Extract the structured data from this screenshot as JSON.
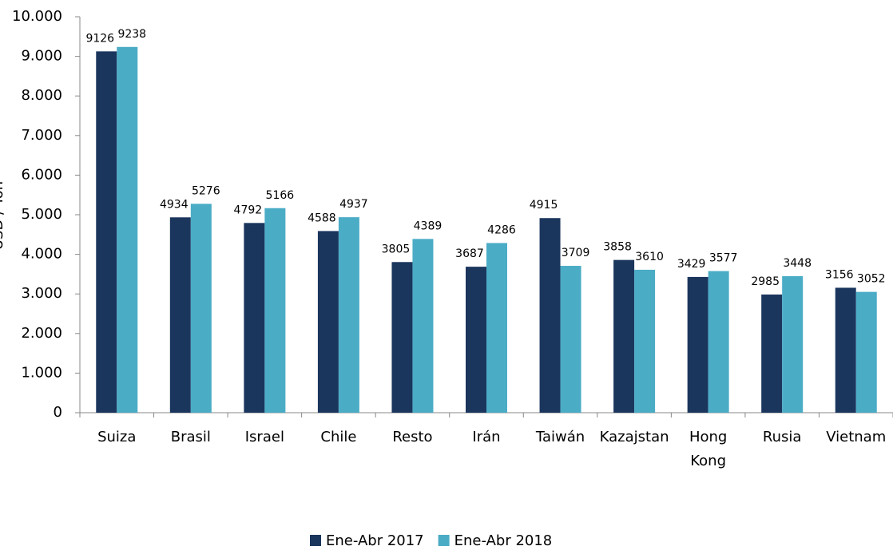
{
  "chart_data": {
    "type": "bar",
    "ylabel": "USD / Ton",
    "categories": [
      "Suiza",
      "Brasil",
      "Israel",
      "Chile",
      "Resto",
      "Irán",
      "Taiwán",
      "Kazajstan",
      "Hong Kong",
      "Rusia",
      "Vietnam"
    ],
    "series": [
      {
        "name": "Ene-Abr 2017",
        "color": "#1b365d",
        "values": [
          9126,
          4934,
          4792,
          4588,
          3805,
          3687,
          4915,
          3858,
          3429,
          2985,
          3156
        ]
      },
      {
        "name": "Ene-Abr 2018",
        "color": "#4bacc6",
        "values": [
          9238,
          5276,
          5166,
          4937,
          4389,
          4286,
          3709,
          3610,
          3577,
          3448,
          3052
        ]
      }
    ],
    "ylim": [
      0,
      10000
    ],
    "yticks": [
      0,
      {
        "value": 1000,
        "label": "1.000"
      },
      {
        "value": 2000,
        "label": "2.000"
      },
      {
        "value": 3000,
        "label": "3.000"
      },
      {
        "value": 4000,
        "label": "4.000"
      },
      {
        "value": 5000,
        "label": "5.000"
      },
      {
        "value": 6000,
        "label": "6.000"
      },
      {
        "value": 7000,
        "label": "7.000"
      },
      {
        "value": 8000,
        "label": "8.000"
      },
      {
        "value": 9000,
        "label": "9.000"
      },
      {
        "value": 10000,
        "label": "10.000"
      }
    ],
    "legend": "bottom"
  }
}
